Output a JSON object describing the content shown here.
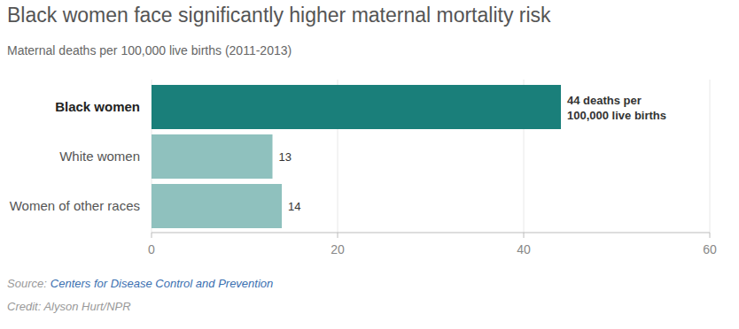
{
  "chart_data": {
    "type": "bar",
    "orientation": "horizontal",
    "title": "Black women face significantly higher maternal mortality risk",
    "subtitle": "Maternal deaths per 100,000 live births (2011-2013)",
    "categories": [
      "Black women",
      "White women",
      "Women of other races"
    ],
    "values": [
      44,
      13,
      14
    ],
    "value_labels": [
      "44 deaths per 100,000 live births",
      "13",
      "14"
    ],
    "colors": [
      "#1a7f7a",
      "#8fc1be",
      "#8fc1be"
    ],
    "xlim": [
      0,
      60
    ],
    "xticks": [
      0,
      20,
      40,
      60
    ],
    "grid": true,
    "data_labels": true,
    "source_label": "Source:",
    "source": "Centers for Disease Control and Prevention",
    "credit": "Credit: Alyson Hurt/NPR"
  }
}
